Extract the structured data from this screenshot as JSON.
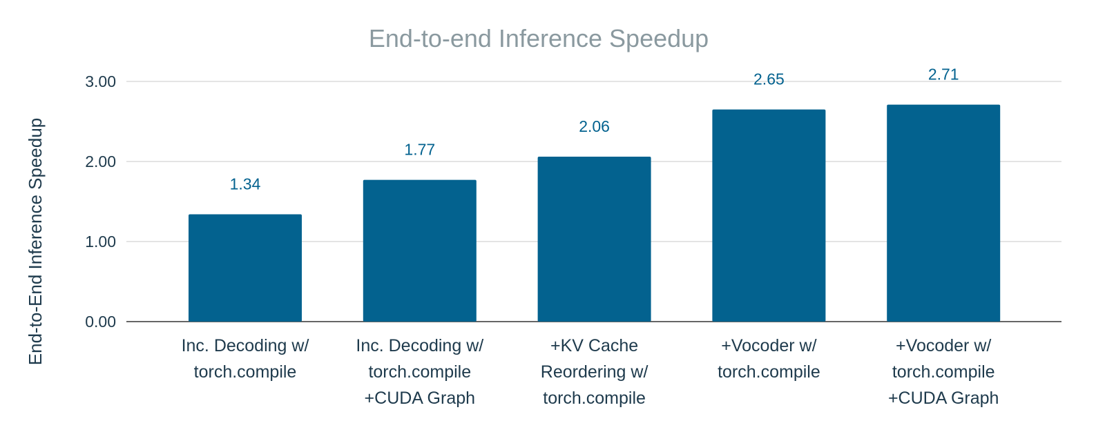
{
  "chart_data": {
    "type": "bar",
    "title": "End-to-end Inference Speedup",
    "xlabel": "",
    "ylabel": "End-to-End Inference Speedup",
    "ylim": [
      0,
      3
    ],
    "yticks": [
      "0.00",
      "1.00",
      "2.00",
      "3.00"
    ],
    "grid": true,
    "legend": "none",
    "bar_color": "#03628f",
    "categories": [
      [
        "Inc. Decoding w/",
        "torch.compile"
      ],
      [
        "Inc. Decoding w/",
        "torch.compile",
        "+CUDA Graph"
      ],
      [
        "+KV Cache",
        "Reordering w/",
        "torch.compile"
      ],
      [
        "+Vocoder w/",
        "torch.compile"
      ],
      [
        "+Vocoder w/",
        "torch.compile",
        "+CUDA Graph"
      ]
    ],
    "values": [
      1.34,
      1.77,
      2.06,
      2.65,
      2.71
    ],
    "data_labels": [
      "1.34",
      "1.77",
      "2.06",
      "2.65",
      "2.71"
    ]
  }
}
